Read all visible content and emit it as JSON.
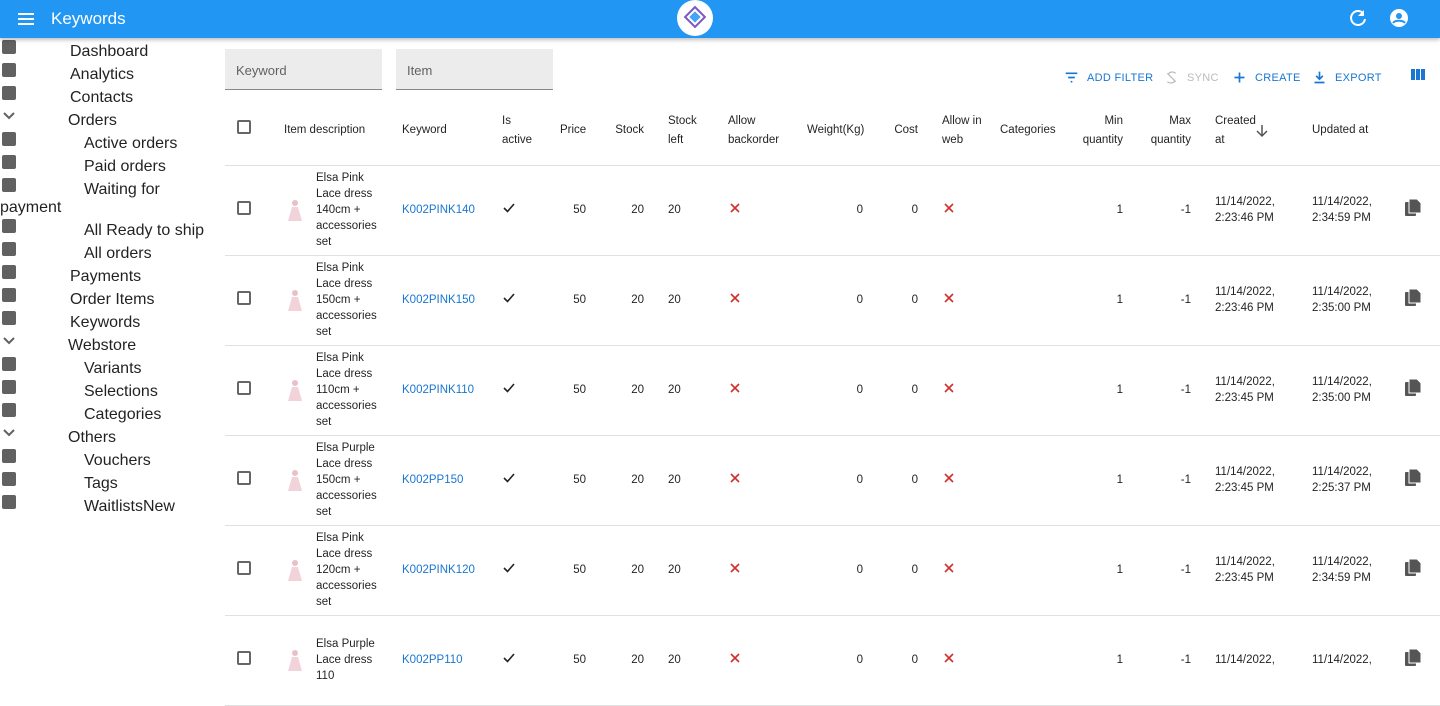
{
  "header": {
    "title": "Keywords"
  },
  "sidebar": [
    {
      "label": "Dashboard"
    },
    {
      "label": "Analytics"
    },
    {
      "label": "Contacts"
    },
    {
      "label": "Orders",
      "children": [
        {
          "label": "Active orders"
        },
        {
          "label": "Paid orders"
        },
        {
          "label": "Waiting for payment"
        },
        {
          "label": "All Ready to ship"
        },
        {
          "label": "All orders"
        }
      ]
    },
    {
      "label": "Payments"
    },
    {
      "label": "Order Items"
    },
    {
      "label": "Keywords",
      "active": true
    },
    {
      "label": "Webstore",
      "children": [
        {
          "label": "Variants"
        },
        {
          "label": "Selections"
        },
        {
          "label": "Categories"
        }
      ]
    },
    {
      "label": "Others",
      "children": [
        {
          "label": "Vouchers"
        },
        {
          "label": "Tags"
        },
        {
          "label": "Waitlists",
          "badge": "New"
        }
      ]
    }
  ],
  "filters": [
    "Keyword",
    "Item"
  ],
  "toolbar": [
    {
      "label": "ADD FILTER"
    },
    {
      "label": "SYNC",
      "disabled": true
    },
    {
      "label": "CREATE"
    },
    {
      "label": "EXPORT"
    }
  ],
  "table": {
    "columns": [
      "Item description",
      "Keyword",
      "Is active",
      "Price",
      "Stock",
      "Stock left",
      "Allow backorder",
      "Weight(Kg)",
      "Cost",
      "Allow in web",
      "Categories",
      "Min quantity",
      "Max quantity",
      "Created at",
      "Updated at"
    ],
    "rows": [
      {
        "description": "Elsa Pink Lace dress 140cm + accessories set",
        "keyword": "K002PINK140",
        "is_active": true,
        "price": 50,
        "stock": 20,
        "stock_left": 20,
        "allow_backorder": false,
        "weight": 0,
        "cost": 0,
        "allow_in_web": false,
        "min_quantity": 1,
        "max_quantity": -1,
        "created_at": "11/14/2022, 2:23:46 PM",
        "updated_at": "11/14/2022, 2:34:59 PM"
      },
      {
        "description": "Elsa Pink Lace dress 150cm + accessories set",
        "keyword": "K002PINK150",
        "is_active": true,
        "price": 50,
        "stock": 20,
        "stock_left": 20,
        "allow_backorder": false,
        "weight": 0,
        "cost": 0,
        "allow_in_web": false,
        "min_quantity": 1,
        "max_quantity": -1,
        "created_at": "11/14/2022, 2:23:46 PM",
        "updated_at": "11/14/2022, 2:35:00 PM"
      },
      {
        "description": "Elsa Pink Lace dress 110cm + accessories set",
        "keyword": "K002PINK110",
        "is_active": true,
        "price": 50,
        "stock": 20,
        "stock_left": 20,
        "allow_backorder": false,
        "weight": 0,
        "cost": 0,
        "allow_in_web": false,
        "min_quantity": 1,
        "max_quantity": -1,
        "created_at": "11/14/2022, 2:23:45 PM",
        "updated_at": "11/14/2022, 2:35:00 PM"
      },
      {
        "description": "Elsa Purple Lace dress 150cm + accessories set",
        "keyword": "K002PP150",
        "is_active": true,
        "price": 50,
        "stock": 20,
        "stock_left": 20,
        "allow_backorder": false,
        "weight": 0,
        "cost": 0,
        "allow_in_web": false,
        "min_quantity": 1,
        "max_quantity": -1,
        "created_at": "11/14/2022, 2:23:45 PM",
        "updated_at": "11/14/2022, 2:25:37 PM"
      },
      {
        "description": "Elsa Pink Lace dress 120cm + accessories set",
        "keyword": "K002PINK120",
        "is_active": true,
        "price": 50,
        "stock": 20,
        "stock_left": 20,
        "allow_backorder": false,
        "weight": 0,
        "cost": 0,
        "allow_in_web": false,
        "min_quantity": 1,
        "max_quantity": -1,
        "created_at": "11/14/2022, 2:23:45 PM",
        "updated_at": "11/14/2022, 2:34:59 PM"
      },
      {
        "description": "Elsa Purple Lace dress 110",
        "keyword": "K002PP110",
        "is_active": true,
        "price": 50,
        "stock": 20,
        "stock_left": 20,
        "allow_backorder": false,
        "weight": 0,
        "cost": 0,
        "allow_in_web": false,
        "min_quantity": 1,
        "max_quantity": -1,
        "created_at": "11/14/2022,",
        "updated_at": "11/14/2022,"
      }
    ]
  }
}
